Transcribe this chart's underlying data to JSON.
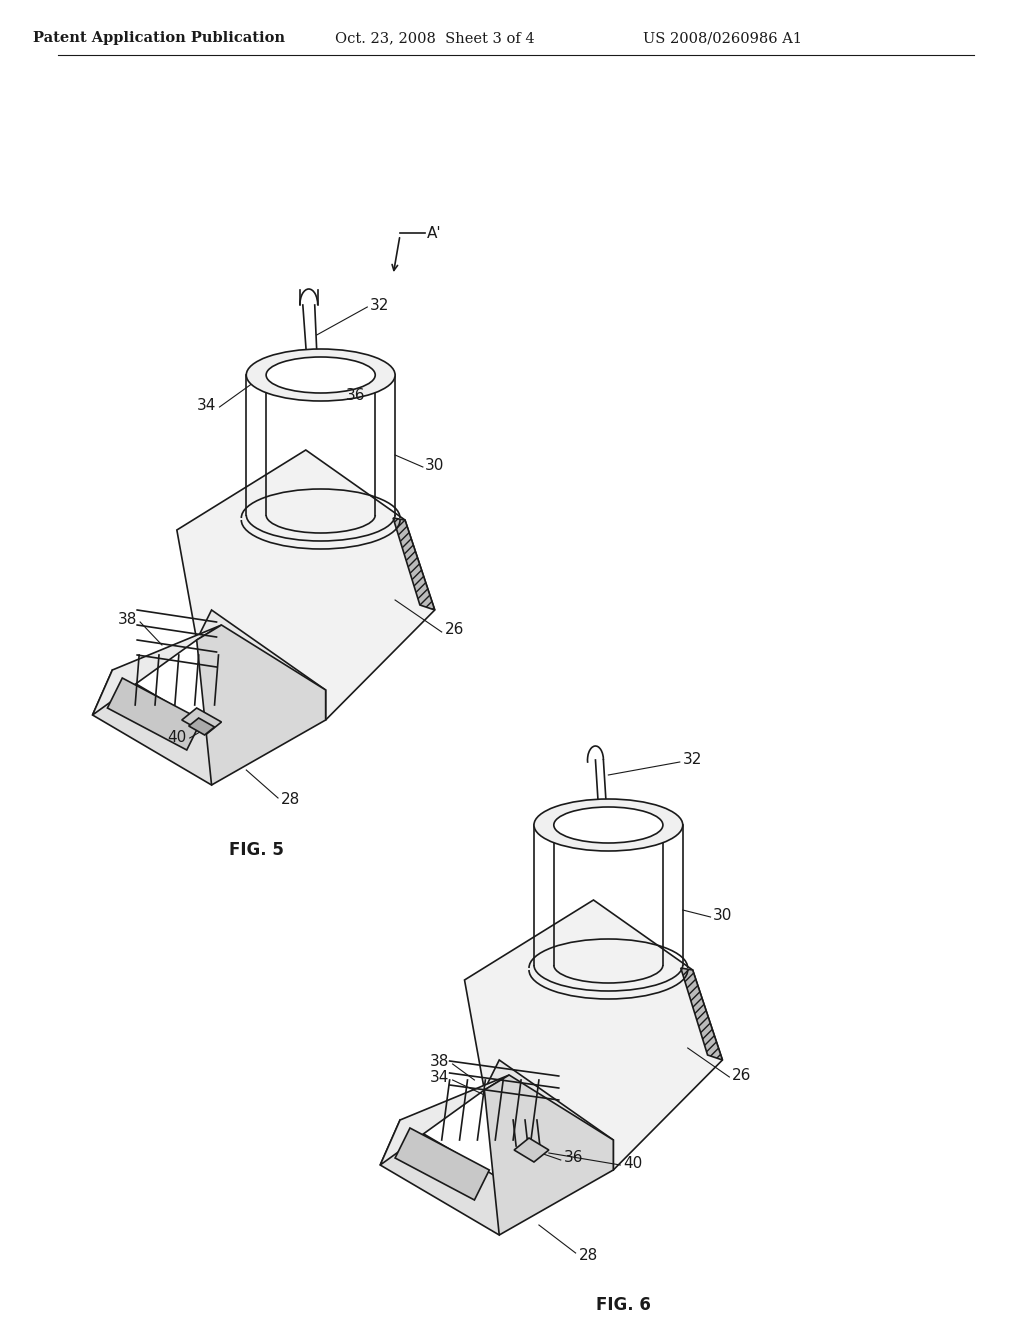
{
  "background_color": "#ffffff",
  "header_left": "Patent Application Publication",
  "header_center": "Oct. 23, 2008  Sheet 3 of 4",
  "header_right": "US 2008/0260986 A1",
  "fig5_label": "FIG. 5",
  "fig6_label": "FIG. 6",
  "line_color": "#1a1a1a",
  "line_width": 1.2,
  "label_fontsize": 11,
  "header_fontsize": 10.5,
  "fig_label_fontsize": 12
}
